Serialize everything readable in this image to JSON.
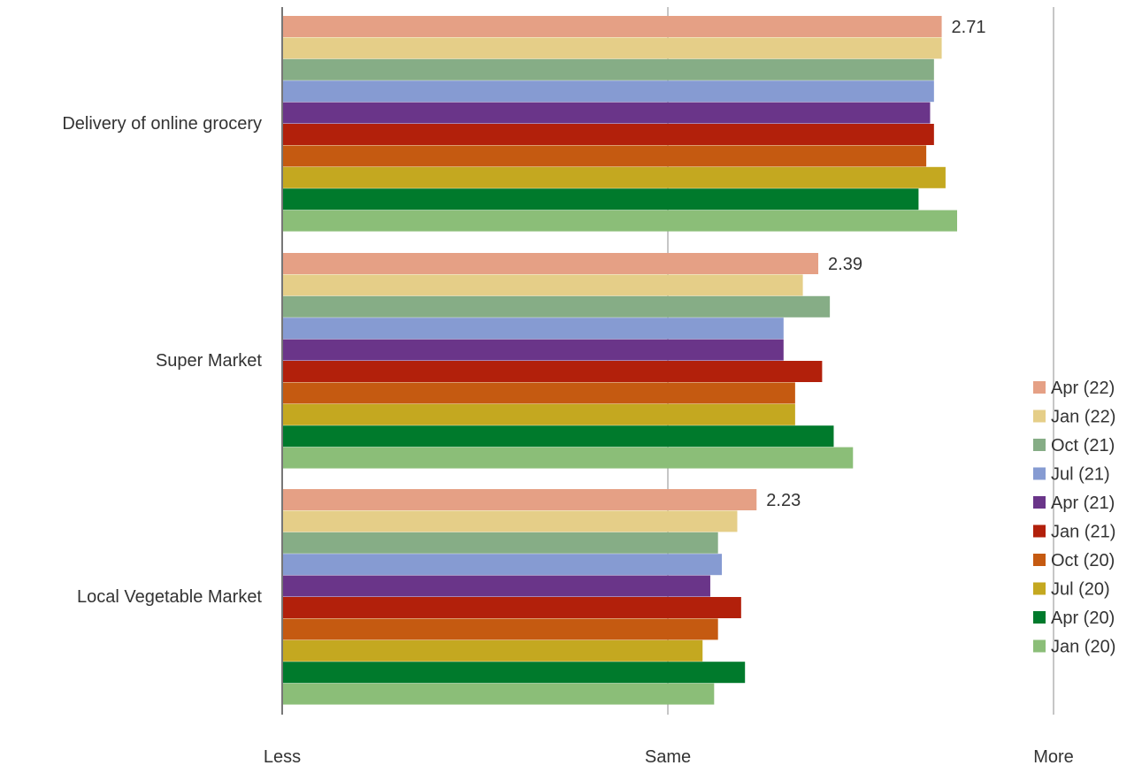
{
  "chart_data": {
    "type": "bar",
    "orientation": "horizontal",
    "categories": [
      "Delivery of online grocery",
      "Super Market",
      "Local Vegetable Market"
    ],
    "x_tick_labels": [
      "Less",
      "Same",
      "More"
    ],
    "xlim": [
      1,
      3
    ],
    "grid": true,
    "legend_position": "right",
    "series": [
      {
        "name": "Apr (22)",
        "color": "#E5A085",
        "values": [
          2.71,
          2.39,
          2.23
        ],
        "labels": [
          "2.71",
          "2.39",
          "2.23"
        ]
      },
      {
        "name": "Jan (22)",
        "color": "#E5CE88",
        "values": [
          2.71,
          2.35,
          2.18
        ]
      },
      {
        "name": "Oct (21)",
        "color": "#86AD86",
        "values": [
          2.69,
          2.42,
          2.13
        ]
      },
      {
        "name": "Jul (21)",
        "color": "#869BD2",
        "values": [
          2.69,
          2.3,
          2.14
        ]
      },
      {
        "name": "Apr (21)",
        "color": "#6A3589",
        "values": [
          2.68,
          2.3,
          2.11
        ]
      },
      {
        "name": "Jan (21)",
        "color": "#B2200B",
        "values": [
          2.69,
          2.4,
          2.19
        ]
      },
      {
        "name": "Oct (20)",
        "color": "#C55A11",
        "values": [
          2.67,
          2.33,
          2.13
        ]
      },
      {
        "name": "Jul (20)",
        "color": "#C4A820",
        "values": [
          2.72,
          2.33,
          2.09
        ]
      },
      {
        "name": "Apr (20)",
        "color": "#007A2C",
        "values": [
          2.65,
          2.43,
          2.2
        ]
      },
      {
        "name": "Jan (20)",
        "color": "#8BBE78",
        "values": [
          2.75,
          2.48,
          2.12
        ]
      }
    ]
  }
}
